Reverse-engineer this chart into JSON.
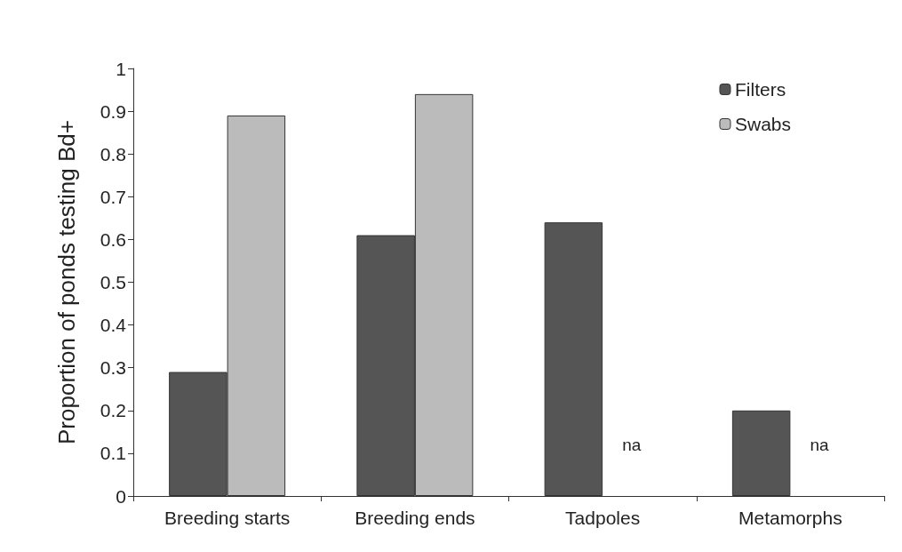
{
  "chart_data": {
    "type": "bar",
    "ylabel": "Proportion of ponds testing Bd+",
    "categories": [
      "Breeding starts",
      "Breeding ends",
      "Tadpoles",
      "Metamorphs"
    ],
    "series": [
      {
        "name": "Filters",
        "color": "#555555",
        "values": [
          0.29,
          0.61,
          0.64,
          0.2
        ]
      },
      {
        "name": "Swabs",
        "color": "#bbbbbb",
        "values": [
          0.89,
          0.94,
          null,
          null
        ]
      }
    ],
    "annotations": [
      {
        "text": "na",
        "x": "Tadpoles",
        "y": 0.12
      },
      {
        "text": "na",
        "x": "Metamorphs",
        "y": 0.12
      }
    ],
    "ylim": [
      0,
      1
    ],
    "yticks": [
      0,
      0.1,
      0.2,
      0.3,
      0.4,
      0.5,
      0.6,
      0.7,
      0.8,
      0.9,
      1
    ],
    "grid": false,
    "legend": "top right"
  }
}
